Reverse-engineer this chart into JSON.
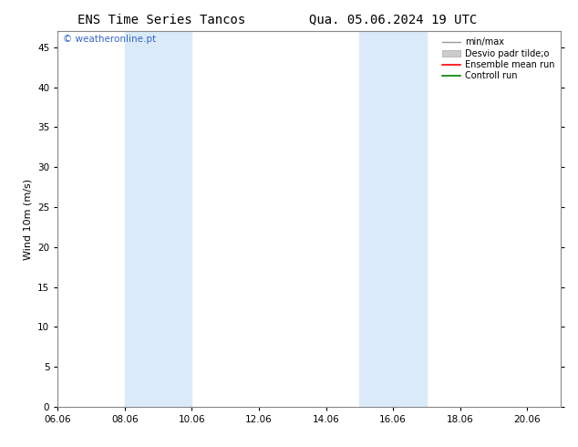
{
  "title_left": "ENS Time Series Tancos",
  "title_right": "Qua. 05.06.2024 19 UTC",
  "ylabel": "Wind 10m (m/s)",
  "watermark": "© weatheronline.pt",
  "xlim": [
    6.06,
    21.06
  ],
  "ylim": [
    0,
    47
  ],
  "yticks": [
    0,
    5,
    10,
    15,
    20,
    25,
    30,
    35,
    40,
    45
  ],
  "xtick_labels": [
    "06.06",
    "08.06",
    "10.06",
    "12.06",
    "14.06",
    "16.06",
    "18.06",
    "20.06"
  ],
  "xtick_positions": [
    6.06,
    8.06,
    10.06,
    12.06,
    14.06,
    16.06,
    18.06,
    20.06
  ],
  "shaded_bands": [
    {
      "xmin": 8.06,
      "xmax": 10.06
    },
    {
      "xmin": 15.06,
      "xmax": 17.06
    }
  ],
  "shaded_color": "#daeaf8",
  "bg_color": "#ffffff",
  "legend_items": [
    {
      "label": "min/max",
      "color": "#999999",
      "lw": 1.0
    },
    {
      "label": "Desvio padr tilde;o",
      "color": "#cccccc",
      "lw": 5
    },
    {
      "label": "Ensemble mean run",
      "color": "#ff0000",
      "lw": 1.2
    },
    {
      "label": "Controll run",
      "color": "#008000",
      "lw": 1.2
    }
  ],
  "title_fontsize": 10,
  "tick_fontsize": 7.5,
  "ylabel_fontsize": 8,
  "watermark_color": "#3366cc",
  "border_color": "#888888"
}
